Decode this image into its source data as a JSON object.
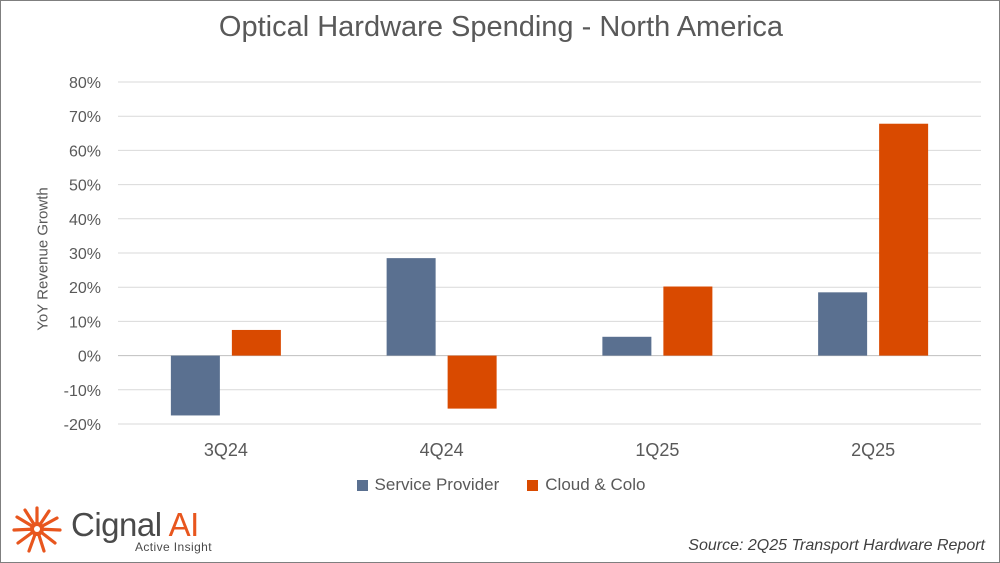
{
  "chart_data": {
    "type": "bar",
    "title": "Optical Hardware Spending - North America",
    "ylabel": "YoY Revenue Growth",
    "xlabel": "",
    "categories": [
      "3Q24",
      "4Q24",
      "1Q25",
      "2Q25"
    ],
    "series": [
      {
        "name": "Service Provider",
        "color": "#5a7090",
        "values": [
          -17.5,
          28.5,
          5.5,
          18.5
        ]
      },
      {
        "name": "Cloud & Colo",
        "color": "#d94a00",
        "values": [
          7.5,
          -15.5,
          20.2,
          67.8
        ]
      }
    ],
    "ylim": [
      -20,
      80
    ],
    "yticks": [
      -20,
      -10,
      0,
      10,
      20,
      30,
      40,
      50,
      60,
      70,
      80
    ],
    "ytick_labels": [
      "-20%",
      "-10%",
      "0%",
      "10%",
      "20%",
      "30%",
      "40%",
      "50%",
      "60%",
      "70%",
      "80%"
    ],
    "grid": true,
    "legend_position": "bottom"
  },
  "branding": {
    "brand_main": "Cignal",
    "brand_accent": "AI",
    "tagline": "Active Insight",
    "accent_color": "#e8561e"
  },
  "source": "Source: 2Q25 Transport Hardware Report"
}
